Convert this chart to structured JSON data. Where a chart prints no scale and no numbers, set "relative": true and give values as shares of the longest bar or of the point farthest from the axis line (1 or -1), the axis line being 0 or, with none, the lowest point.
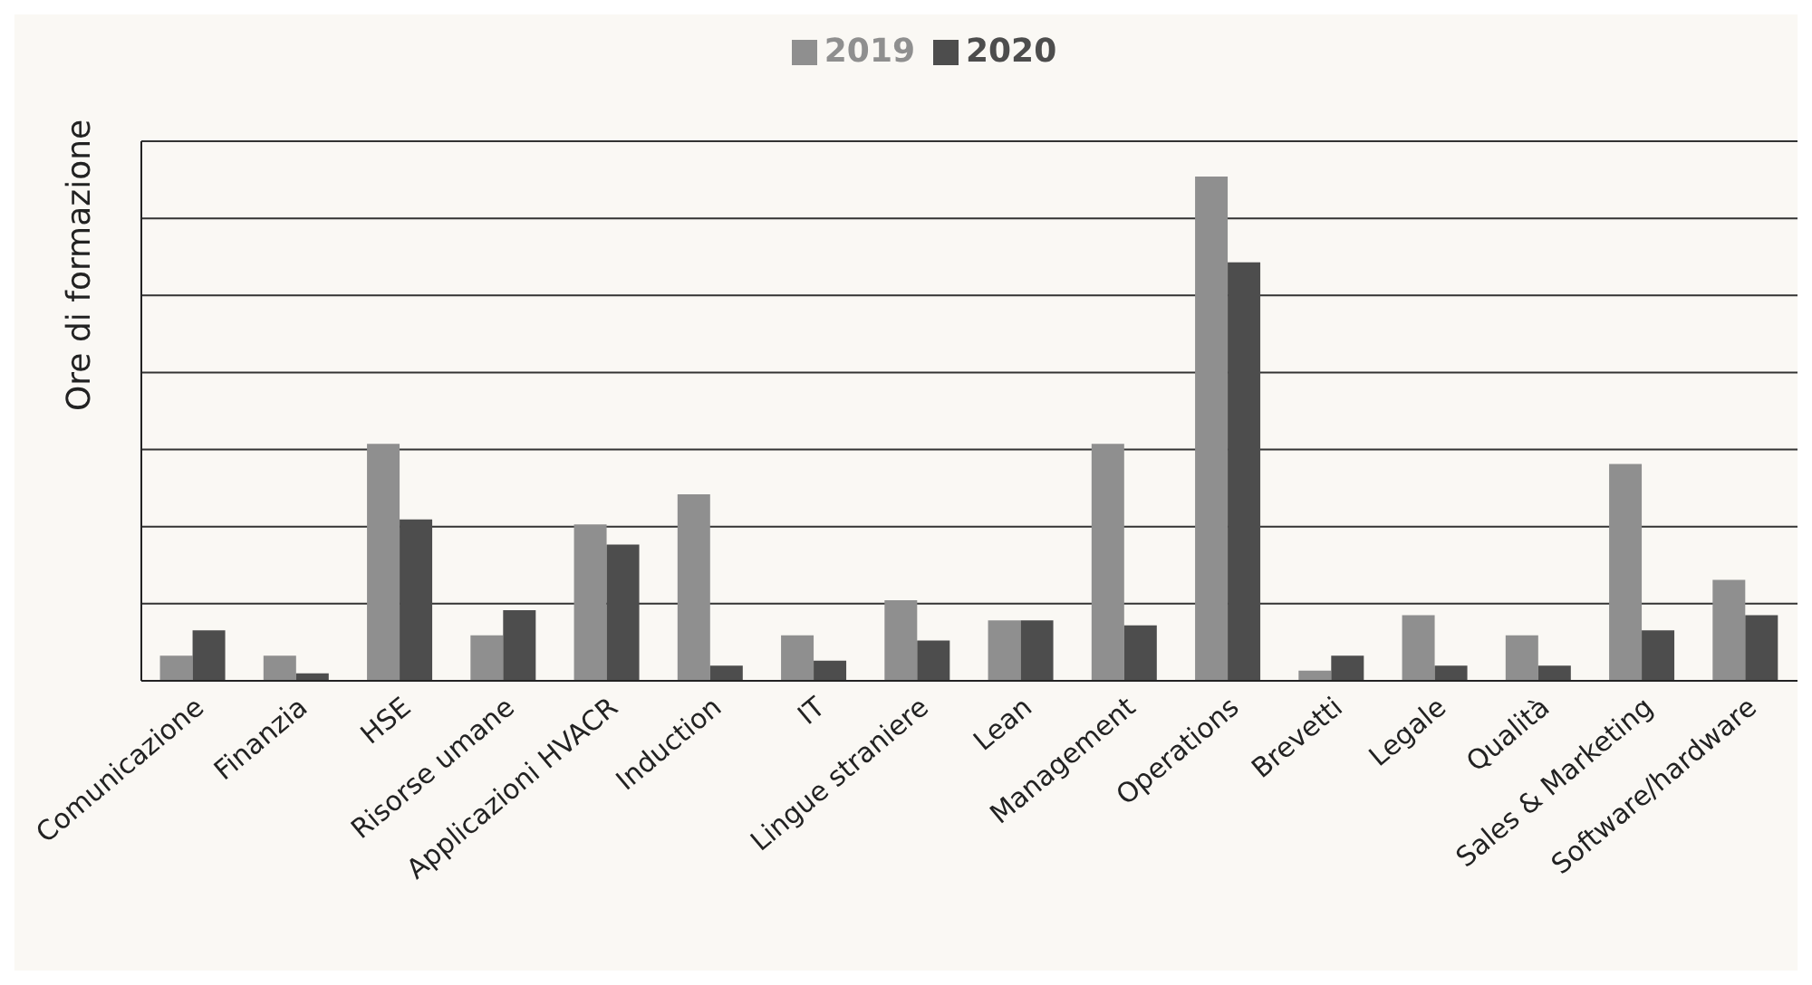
{
  "chart_data": {
    "type": "bar",
    "relative": true,
    "ylabel": "Ore di formazione",
    "legend": "top",
    "grid": "y",
    "categories": [
      "Comunicazione",
      "Finanzia",
      "HSE",
      "Risorse umane",
      "Applicazioni HVACR",
      "Induction",
      "IT",
      "Lingue straniere",
      "Lean",
      "Management",
      "Operations",
      "Brevetti",
      "Legale",
      "Qualità",
      "Sales & Marketing",
      "Software/hardware"
    ],
    "series": [
      {
        "name": "2019",
        "color": "#8f8f8f",
        "values": [
          0.05,
          0.05,
          0.47,
          0.09,
          0.31,
          0.37,
          0.09,
          0.16,
          0.12,
          0.47,
          1,
          0.02,
          0.13,
          0.09,
          0.43,
          0.2
        ]
      },
      {
        "name": "2020",
        "color": "#4d4d4d",
        "values": [
          0.1,
          0.015,
          0.32,
          0.14,
          0.27,
          0.03,
          0.04,
          0.08,
          0.12,
          0.11,
          0.83,
          0.05,
          0.03,
          0.03,
          0.1,
          0.13
        ]
      }
    ]
  }
}
